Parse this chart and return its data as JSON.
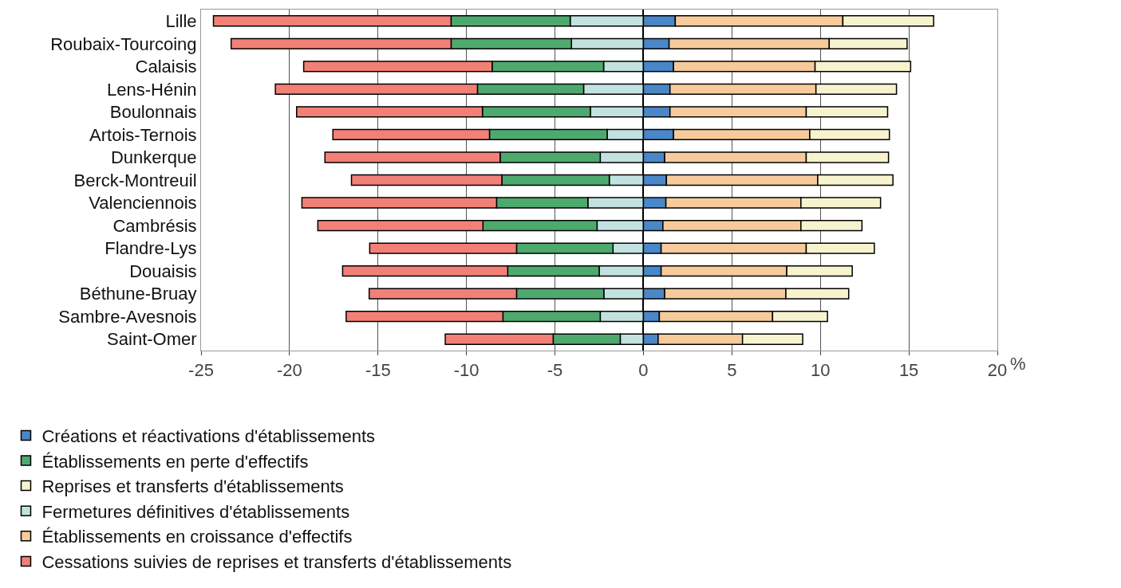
{
  "chart_data": {
    "type": "bar",
    "orientation": "horizontal",
    "stacked": true,
    "xlabel": "%",
    "categories": [
      "Lille",
      "Roubaix-Tourcoing",
      "Calaisis",
      "Lens-Hénin",
      "Boulonnais",
      "Artois-Ternois",
      "Dunkerque",
      "Berck-Montreuil",
      "Valenciennois",
      "Cambrésis",
      "Flandre-Lys",
      "Douaisis",
      "Béthune-Bruay",
      "Sambre-Avesnois",
      "Saint-Omer"
    ],
    "series": [
      {
        "name": "Fermetures définitives d'établissements",
        "color": "#c2e2df",
        "values": [
          -4.14,
          -4.07,
          -2.25,
          -3.38,
          -3.0,
          -2.05,
          -2.44,
          -1.93,
          -3.14,
          -2.62,
          -1.72,
          -2.5,
          -2.24,
          -2.44,
          -1.31
        ]
      },
      {
        "name": "Établissements en perte d'effectifs",
        "color": "#4ea96f",
        "values": [
          -6.73,
          -6.8,
          -6.3,
          -6.0,
          -6.1,
          -6.65,
          -5.66,
          -6.07,
          -5.16,
          -6.45,
          -5.45,
          -5.17,
          -4.93,
          -5.5,
          -3.79
        ]
      },
      {
        "name": "Cessations suivies de reprises et transferts d'établissements",
        "color": "#f28077",
        "values": [
          -13.43,
          -12.43,
          -10.65,
          -11.42,
          -10.5,
          -8.85,
          -9.9,
          -8.5,
          -11.0,
          -9.33,
          -8.3,
          -9.33,
          -8.33,
          -8.86,
          -6.1
        ]
      },
      {
        "name": "Créations et réactivations d'établissements",
        "color": "#4a87c8",
        "values": [
          1.8,
          1.45,
          1.7,
          1.5,
          1.5,
          1.7,
          1.2,
          1.3,
          1.27,
          1.1,
          1.0,
          1.0,
          1.2,
          0.9,
          0.83
        ]
      },
      {
        "name": "Établissements en croissance d'effectifs",
        "color": "#f6ca9a",
        "values": [
          9.47,
          9.05,
          8.0,
          8.25,
          7.7,
          7.7,
          8.0,
          8.55,
          7.63,
          7.8,
          8.2,
          7.1,
          6.85,
          6.4,
          4.77
        ]
      },
      {
        "name": "Reprises et transferts d'établissements",
        "color": "#f8f3cf",
        "values": [
          5.13,
          4.4,
          5.4,
          4.55,
          4.6,
          4.5,
          4.65,
          4.25,
          4.5,
          3.45,
          3.85,
          3.7,
          3.55,
          3.1,
          3.4
        ]
      }
    ],
    "xlim": [
      -25,
      20
    ],
    "xticks": [
      -25,
      -20,
      -15,
      -10,
      -5,
      0,
      5,
      10,
      15,
      20
    ],
    "grid": "x",
    "legend": "bottom"
  }
}
